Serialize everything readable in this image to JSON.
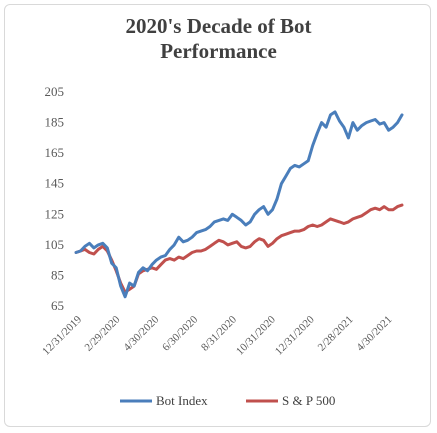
{
  "chart_data": {
    "type": "line",
    "title_line1": "2020's Decade of Bot",
    "title_line2": "Performance",
    "xlabel": "",
    "ylabel": "",
    "ylim": [
      65,
      205
    ],
    "y_ticks": [
      65,
      85,
      105,
      125,
      145,
      165,
      185,
      205
    ],
    "x_tick_labels": [
      "12/31/2019",
      "2/29/2020",
      "4/30/2020",
      "6/30/2020",
      "8/31/2020",
      "10/31/2020",
      "12/31/2020",
      "2/28/2021",
      "4/30/2021"
    ],
    "x_tick_index": [
      0,
      8.6,
      17.3,
      26,
      34.7,
      43.4,
      52.1,
      60.8,
      69.5
    ],
    "grid": false,
    "legend_position": "bottom",
    "series": [
      {
        "name": "Bot Index",
        "color": "#4a7ebb",
        "values": [
          100,
          101,
          104,
          106,
          103,
          105,
          106,
          103,
          93,
          90,
          78,
          71,
          80,
          78,
          87,
          90,
          88,
          92,
          95,
          97,
          98,
          102,
          105,
          110,
          107,
          108,
          110,
          113,
          114,
          115,
          117,
          120,
          121,
          122,
          121,
          125,
          123,
          121,
          118,
          120,
          125,
          128,
          130,
          125,
          128,
          135,
          145,
          150,
          155,
          157,
          156,
          158,
          160,
          170,
          178,
          185,
          182,
          190,
          192,
          186,
          182,
          175,
          185,
          180,
          183,
          185,
          186,
          187,
          184,
          185,
          180,
          182,
          185,
          190
        ]
      },
      {
        "name": "S & P 500",
        "color": "#c0504d",
        "values": [
          100,
          101,
          102,
          100,
          99,
          102,
          104,
          101,
          95,
          88,
          80,
          74,
          76,
          78,
          86,
          88,
          89,
          90,
          89,
          92,
          95,
          96,
          95,
          97,
          96,
          98,
          100,
          101,
          101,
          102,
          104,
          106,
          108,
          107,
          105,
          106,
          107,
          104,
          103,
          104,
          107,
          109,
          108,
          104,
          106,
          109,
          111,
          112,
          113,
          114,
          114,
          115,
          117,
          118,
          117,
          118,
          120,
          122,
          121,
          120,
          119,
          120,
          122,
          123,
          124,
          126,
          128,
          129,
          128,
          130,
          128,
          128,
          130,
          131
        ]
      }
    ]
  }
}
